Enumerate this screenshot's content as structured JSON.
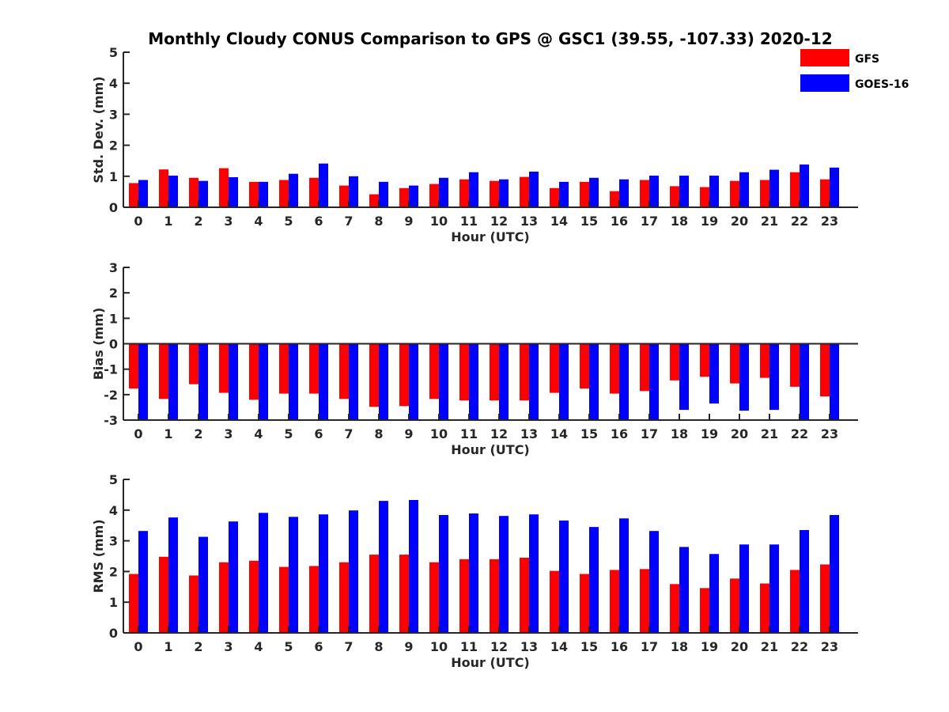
{
  "chart_data": {
    "title": "Monthly Cloudy CONUS Comparison to GPS @ GSC1 (39.55, -107.33) 2020-12",
    "legend": {
      "placement": "top-right",
      "entries": [
        {
          "name": "GFS",
          "color": "#ff0000"
        },
        {
          "name": "GOES-16",
          "color": "#0000ff"
        }
      ]
    },
    "panels": [
      {
        "type": "bar",
        "ylabel": "Std. Dev. (mm)",
        "xlabel": "Hour (UTC)",
        "ylim": [
          0,
          5
        ],
        "yticks": [
          0,
          1,
          2,
          3,
          4,
          5
        ],
        "categories": [
          "0",
          "1",
          "2",
          "3",
          "4",
          "5",
          "6",
          "7",
          "8",
          "9",
          "10",
          "11",
          "12",
          "13",
          "14",
          "15",
          "16",
          "17",
          "18",
          "19",
          "20",
          "21",
          "22",
          "23"
        ],
        "series": [
          {
            "name": "GFS",
            "color": "#ff0000",
            "values": [
              0.78,
              1.22,
              0.95,
              1.26,
              0.82,
              0.88,
              0.95,
              0.7,
              0.42,
              0.62,
              0.75,
              0.9,
              0.85,
              0.98,
              0.62,
              0.82,
              0.52,
              0.88,
              0.68,
              0.65,
              0.85,
              0.88,
              1.13,
              0.9
            ]
          },
          {
            "name": "GOES-16",
            "color": "#0000ff",
            "values": [
              0.88,
              1.02,
              0.85,
              0.97,
              0.82,
              1.08,
              1.41,
              1.0,
              0.82,
              0.7,
              0.95,
              1.13,
              0.9,
              1.15,
              0.82,
              0.95,
              0.9,
              1.02,
              1.02,
              1.02,
              1.13,
              1.21,
              1.38,
              1.28
            ]
          }
        ]
      },
      {
        "type": "bar",
        "ylabel": "Bias (mm)",
        "xlabel": "Hour (UTC)",
        "ylim": [
          -3,
          3
        ],
        "yticks": [
          -3,
          -2,
          -1,
          0,
          1,
          2,
          3
        ],
        "categories": [
          "0",
          "1",
          "2",
          "3",
          "4",
          "5",
          "6",
          "7",
          "8",
          "9",
          "10",
          "11",
          "12",
          "13",
          "14",
          "15",
          "16",
          "17",
          "18",
          "19",
          "20",
          "21",
          "22",
          "23"
        ],
        "series": [
          {
            "name": "GFS",
            "color": "#ff0000",
            "values": [
              -1.76,
              -2.17,
              -1.59,
              -1.93,
              -2.2,
              -1.96,
              -1.96,
              -2.17,
              -2.48,
              -2.45,
              -2.17,
              -2.23,
              -2.23,
              -2.23,
              -1.93,
              -1.76,
              -1.96,
              -1.86,
              -1.44,
              -1.3,
              -1.56,
              -1.34,
              -1.69,
              -2.07
            ]
          },
          {
            "name": "GOES-16",
            "color": "#0000ff",
            "values": [
              -3.5,
              -3.5,
              -3.5,
              -3.5,
              -3.5,
              -3.5,
              -3.5,
              -3.5,
              -3.5,
              -3.5,
              -3.5,
              -3.5,
              -3.5,
              -3.5,
              -3.5,
              -3.5,
              -3.5,
              -3.5,
              -2.6,
              -2.35,
              -2.63,
              -2.6,
              -3.5,
              -3.5
            ]
          }
        ]
      },
      {
        "type": "bar",
        "ylabel": "RMS (mm)",
        "xlabel": "Hour (UTC)",
        "ylim": [
          0,
          5
        ],
        "yticks": [
          0,
          1,
          2,
          3,
          4,
          5
        ],
        "categories": [
          "0",
          "1",
          "2",
          "3",
          "4",
          "5",
          "6",
          "7",
          "8",
          "9",
          "10",
          "11",
          "12",
          "13",
          "14",
          "15",
          "16",
          "17",
          "18",
          "19",
          "20",
          "21",
          "22",
          "23"
        ],
        "series": [
          {
            "name": "GFS",
            "color": "#ff0000",
            "values": [
              1.92,
              2.48,
              1.87,
              2.3,
              2.35,
              2.15,
              2.18,
              2.3,
              2.55,
              2.55,
              2.3,
              2.4,
              2.4,
              2.45,
              2.02,
              1.92,
              2.05,
              2.08,
              1.59,
              1.46,
              1.77,
              1.61,
              2.05,
              2.23
            ]
          },
          {
            "name": "GOES-16",
            "color": "#0000ff",
            "values": [
              3.32,
              3.76,
              3.13,
              3.63,
              3.91,
              3.78,
              3.86,
              3.99,
              4.3,
              4.33,
              3.84,
              3.89,
              3.81,
              3.86,
              3.66,
              3.45,
              3.73,
              3.32,
              2.8,
              2.57,
              2.88,
              2.88,
              3.35,
              3.84
            ]
          }
        ]
      }
    ]
  }
}
